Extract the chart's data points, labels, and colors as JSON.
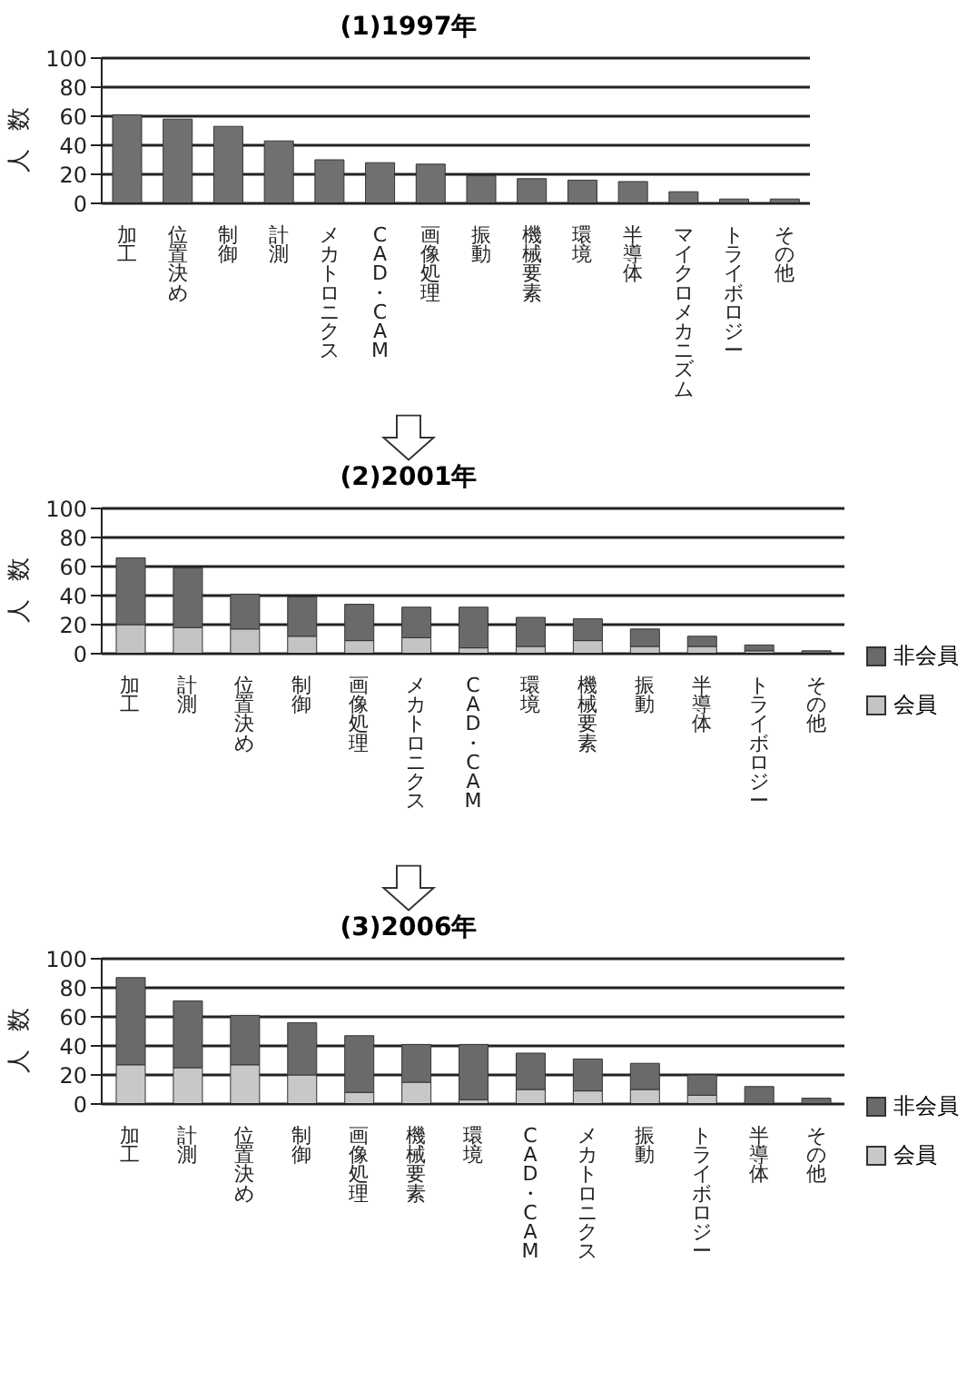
{
  "chart_data": [
    {
      "type": "bar",
      "title": "(1)1997年",
      "ylabel": "人数",
      "categories": [
        "加工",
        "位置決め",
        "制御",
        "計測",
        "メカトロニクス",
        "CAD・CAM",
        "画像処理",
        "振動",
        "機械要素",
        "環境",
        "半導体",
        "マイクロメカニズム",
        "トライボロジー",
        "その他"
      ],
      "values": [
        61,
        58,
        53,
        43,
        30,
        28,
        27,
        19,
        17,
        16,
        15,
        8,
        3,
        3
      ],
      "color": "#707070",
      "ylim": [
        0,
        100
      ],
      "yticks": [
        0,
        20,
        40,
        60,
        80,
        100
      ],
      "grid": "y"
    },
    {
      "type": "bar",
      "title": "(2)2001年",
      "ylabel": "人数",
      "categories": [
        "加工",
        "計測",
        "位置決め",
        "制御",
        "画像処理",
        "メカトロニクス",
        "CAD・CAM",
        "環境",
        "機械要素",
        "振動",
        "半導体",
        "トライボロジー",
        "その他"
      ],
      "stacked": true,
      "series": [
        {
          "name": "会員",
          "color": "#c4c4c4",
          "values": [
            20,
            18,
            17,
            12,
            9,
            11,
            4,
            5,
            9,
            5,
            5,
            2,
            null
          ]
        },
        {
          "name": "非会員",
          "color": "#6a6a6a",
          "values": [
            46,
            41,
            24,
            27,
            25,
            21,
            28,
            20,
            15,
            12,
            7,
            4,
            2
          ]
        }
      ],
      "ylim": [
        0,
        100
      ],
      "yticks": [
        0,
        20,
        40,
        60,
        80,
        100
      ],
      "grid": "y",
      "legend": "right"
    },
    {
      "type": "bar",
      "title": "(3)2006年",
      "ylabel": "人数",
      "categories": [
        "加工",
        "計測",
        "位置決め",
        "制御",
        "画像処理",
        "機械要素",
        "環境",
        "CAD・CAM",
        "メカトロニクス",
        "振動",
        "トライボロジー",
        "半導体",
        "その他"
      ],
      "stacked": true,
      "series": [
        {
          "name": "会員",
          "color": "#c8c8c8",
          "values": [
            27,
            25,
            27,
            20,
            8,
            15,
            3,
            10,
            9,
            10,
            6,
            null,
            null
          ]
        },
        {
          "name": "非会員",
          "color": "#6a6a6a",
          "values": [
            60,
            46,
            34,
            36,
            39,
            26,
            38,
            25,
            22,
            18,
            14,
            12,
            4
          ]
        }
      ],
      "ylim": [
        0,
        100
      ],
      "yticks": [
        0,
        20,
        40,
        60,
        80,
        100
      ],
      "grid": "y",
      "legend": "right"
    }
  ]
}
